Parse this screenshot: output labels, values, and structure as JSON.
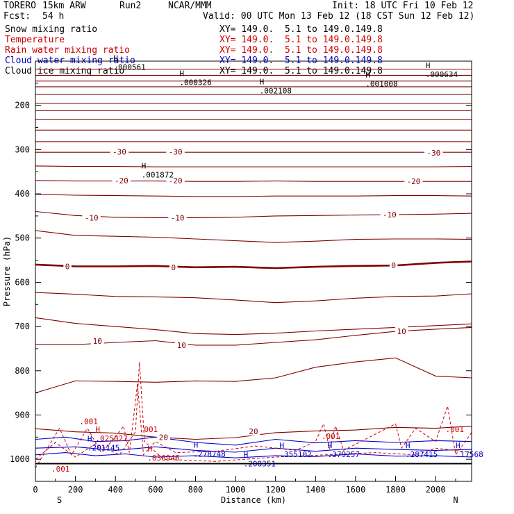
{
  "header": {
    "model": "TORERO",
    "run_desc": "15km ARW",
    "run": "Run2",
    "org": "NCAR/MMM",
    "init": "Init: 18 UTC Fri 10 Feb 12",
    "fcst_label": "Fcst:",
    "fcst_value": "54 h",
    "valid": "Valid: 00 UTC Mon 13 Feb 12 (18 CST Sun 12 Feb 12)"
  },
  "fields": [
    {
      "label": "Snow mixing ratio",
      "xy": "XY= 149.0.  5.1 to 149.0.149.8",
      "color": "#000000"
    },
    {
      "label": "Temperature",
      "xy": "XY= 149.0.  5.1 to 149.0.149.8",
      "color": "#cc0000"
    },
    {
      "label": "Rain water mixing ratio",
      "xy": "XY= 149.0.  5.1 to 149.0.149.8",
      "color": "#cc0000"
    },
    {
      "label": "Cloud water mixing ratio",
      "xy": "XY= 149.0.  5.1 to 149.0.149.8",
      "color": "#0000cc"
    },
    {
      "label": "Cloud ice mixing ratio",
      "xy": "XY= 149.0.  5.1 to 149.0.149.8",
      "color": "#000000"
    }
  ],
  "chart_data": {
    "type": "line",
    "subtype": "vertical cross-section (contours)",
    "xlabel": "Distance (km)",
    "ylabel": "Pressure (hPa)",
    "xlim": [
      0,
      2180
    ],
    "ylim": [
      1050,
      100
    ],
    "x_ticks": [
      "0",
      "200",
      "400",
      "600",
      "800",
      "1000",
      "1200",
      "1400",
      "1600",
      "1800",
      "2000"
    ],
    "y_ticks": [
      "200",
      "300",
      "400",
      "500",
      "600",
      "700",
      "800",
      "900",
      "1000"
    ],
    "endpoints": {
      "left": "S",
      "right": "N"
    },
    "temperature_labels": [
      {
        "text": "-30",
        "x": 420,
        "p": 305
      },
      {
        "text": "-30",
        "x": 700,
        "p": 305
      },
      {
        "text": "-30",
        "x": 1990,
        "p": 307
      },
      {
        "text": "-20",
        "x": 430,
        "p": 370
      },
      {
        "text": "-20",
        "x": 700,
        "p": 370
      },
      {
        "text": "-20",
        "x": 1890,
        "p": 372
      },
      {
        "text": "-10",
        "x": 280,
        "p": 454
      },
      {
        "text": "-10",
        "x": 710,
        "p": 454
      },
      {
        "text": "-10",
        "x": 1770,
        "p": 447
      },
      {
        "text": "0",
        "x": 160,
        "p": 564
      },
      {
        "text": "0",
        "x": 690,
        "p": 566
      },
      {
        "text": "0",
        "x": 1790,
        "p": 562
      },
      {
        "text": "10",
        "x": 310,
        "p": 733
      },
      {
        "text": "10",
        "x": 730,
        "p": 742
      },
      {
        "text": "10",
        "x": 1830,
        "p": 711
      },
      {
        "text": "20",
        "x": 640,
        "p": 950
      },
      {
        "text": "20",
        "x": 1090,
        "p": 937
      }
    ],
    "maxima": [
      {
        "text": ".000561",
        "x": 390,
        "p": 113,
        "color": "#000000"
      },
      {
        "text": ".000326",
        "x": 720,
        "p": 148,
        "color": "#000000"
      },
      {
        "text": ".002108",
        "x": 1120,
        "p": 167,
        "color": "#000000"
      },
      {
        "text": ".001008",
        "x": 1650,
        "p": 151,
        "color": "#000000"
      },
      {
        "text": ".000634",
        "x": 1950,
        "p": 130,
        "color": "#000000"
      },
      {
        "text": ".001872",
        "x": 530,
        "p": 357,
        "color": "#000000"
      },
      {
        "text": ".025027",
        "x": 300,
        "p": 953,
        "color": "#cc0000"
      },
      {
        "text": ".036946",
        "x": 560,
        "p": 997,
        "color": "#cc0000"
      },
      {
        "text": ".208351",
        "x": 1040,
        "p": 1010,
        "color": "#0000cc"
      },
      {
        "text": ".201145",
        "x": 260,
        "p": 974,
        "color": "#0000cc"
      },
      {
        "text": ".278748",
        "x": 790,
        "p": 988,
        "color": "#0000cc"
      },
      {
        "text": ".355102",
        "x": 1220,
        "p": 989,
        "color": "#0000cc"
      },
      {
        "text": ".379257",
        "x": 1460,
        "p": 989,
        "color": "#0000cc"
      },
      {
        "text": ".287415",
        "x": 1850,
        "p": 989,
        "color": "#0000cc"
      },
      {
        "text": ".17568",
        "x": 2100,
        "p": 989,
        "color": "#0000cc"
      },
      {
        "text": ".001",
        "x": 220,
        "p": 914,
        "color": "#cc0000"
      },
      {
        "text": ".001",
        "x": 520,
        "p": 932,
        "color": "#cc0000"
      },
      {
        "text": ".001",
        "x": 1430,
        "p": 948,
        "color": "#cc0000"
      },
      {
        "text": ".001",
        "x": 2050,
        "p": 932,
        "color": "#cc0000"
      },
      {
        "text": ".001",
        "x": 80,
        "p": 1022,
        "color": "#cc0000"
      }
    ],
    "temperature_isotherms_hPa": {
      "x": [
        0,
        200,
        400,
        600,
        800,
        1000,
        1200,
        1400,
        1600,
        1800,
        2000,
        2180
      ],
      "levels": [
        [
          118,
          118,
          118,
          118,
          118,
          118,
          118,
          118,
          118,
          118,
          118,
          118
        ],
        [
          132,
          132,
          132,
          132,
          132,
          132,
          132,
          132,
          132,
          132,
          132,
          132
        ],
        [
          145,
          145,
          145,
          145,
          145,
          145,
          145,
          145,
          145,
          145,
          145,
          145
        ],
        [
          158,
          158,
          158,
          158,
          158,
          158,
          158,
          158,
          158,
          158,
          158,
          158
        ],
        [
          175,
          175,
          175,
          175,
          175,
          175,
          175,
          175,
          175,
          175,
          175,
          175
        ],
        [
          195,
          195,
          195,
          195,
          195,
          195,
          195,
          195,
          195,
          195,
          195,
          195
        ],
        [
          212,
          212,
          212,
          212,
          212,
          212,
          212,
          212,
          212,
          212,
          212,
          212
        ],
        [
          232,
          232,
          232,
          232,
          232,
          232,
          232,
          232,
          232,
          232,
          232,
          232
        ],
        [
          256,
          256,
          256,
          256,
          256,
          256,
          256,
          256,
          256,
          256,
          256,
          256
        ],
        [
          282,
          282,
          282,
          282,
          282,
          282,
          282,
          282,
          282,
          282,
          282,
          282
        ],
        [
          306,
          306,
          306,
          306,
          306,
          306,
          306,
          306,
          306,
          306,
          306,
          306
        ],
        [
          337,
          338,
          338,
          339,
          339,
          339,
          339,
          339,
          339,
          339,
          339,
          338
        ],
        [
          370,
          371,
          371,
          371,
          372,
          372,
          371,
          372,
          372,
          372,
          372,
          372
        ],
        [
          401,
          403,
          404,
          405,
          406,
          406,
          405,
          405,
          405,
          404,
          404,
          405
        ],
        [
          440,
          449,
          453,
          454,
          454,
          453,
          450,
          449,
          448,
          447,
          446,
          444
        ],
        [
          483,
          494,
          496,
          498,
          502,
          506,
          510,
          507,
          503,
          502,
          502,
          503
        ],
        [
          560,
          564,
          564,
          563,
          566,
          565,
          568,
          565,
          563,
          562,
          556,
          553
        ],
        [
          623,
          627,
          632,
          633,
          635,
          640,
          646,
          642,
          636,
          632,
          631,
          626
        ],
        [
          680,
          693,
          700,
          707,
          716,
          718,
          715,
          710,
          706,
          702,
          698,
          694
        ],
        [
          741,
          741,
          736,
          732,
          742,
          742,
          736,
          730,
          720,
          711,
          706,
          702
        ],
        [
          850,
          823,
          824,
          826,
          823,
          824,
          816,
          792,
          780,
          771,
          812,
          816
        ],
        [
          931,
          938,
          941,
          950,
          955,
          951,
          940,
          936,
          934,
          928,
          930,
          925
        ]
      ]
    },
    "freezing_level_index": 16,
    "surface_pressure_hPa": 1010
  },
  "colors": {
    "temperature": "#800000",
    "rain": "#cc0000",
    "cloud_water": "#0000cc",
    "snow": "#000000",
    "axis": "#000000"
  }
}
